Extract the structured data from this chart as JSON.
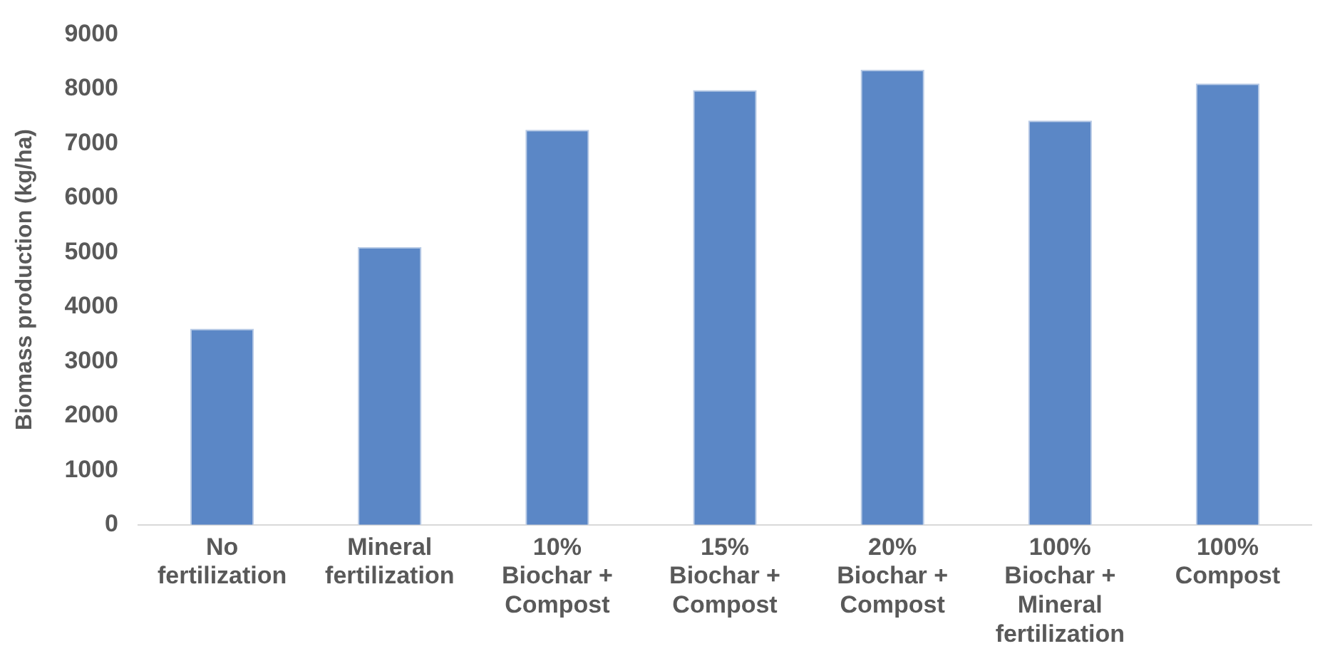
{
  "chart_data": {
    "type": "bar",
    "ylabel": "Biomass production (kg/ha)",
    "categories": [
      "No fertilization",
      "Mineral fertilization",
      "10% Biochar + Compost",
      "15% Biochar + Compost",
      "20% Biochar + Compost",
      "100% Biochar + Mineral fertilization",
      "100% Compost"
    ],
    "values": [
      3600,
      5100,
      7250,
      7980,
      8350,
      7420,
      8100
    ],
    "color": "#5b87c6",
    "ylim": [
      0,
      9000
    ],
    "yticks": [
      0,
      1000,
      2000,
      3000,
      4000,
      5000,
      6000,
      7000,
      8000,
      9000
    ],
    "grid": false,
    "legend": false
  }
}
